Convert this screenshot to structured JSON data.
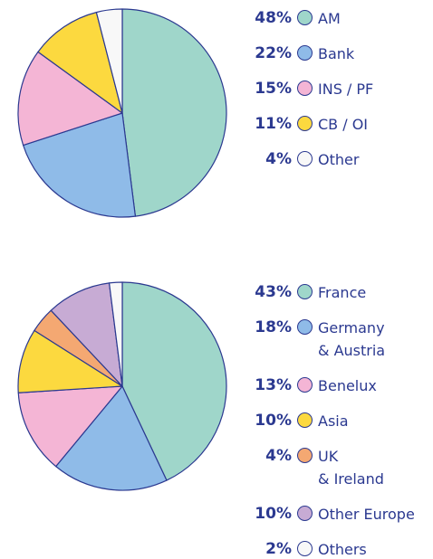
{
  "chart_data": [
    {
      "type": "pie",
      "categories": [
        "AM",
        "Bank",
        "INS / PF",
        "CB / OI",
        "Other"
      ],
      "values": [
        48,
        22,
        15,
        11,
        4
      ],
      "value_labels": [
        "48%",
        "22%",
        "15%",
        "11%",
        "4%"
      ],
      "colors": [
        "#9fd6ca",
        "#8fbbe8",
        "#f4b5d5",
        "#fcd93f",
        "#f8f8f8"
      ]
    },
    {
      "type": "pie",
      "categories": [
        "France",
        "Germany\n& Austria",
        "Benelux",
        "Asia",
        "UK\n& Ireland",
        "Other Europe",
        "Others"
      ],
      "values": [
        43,
        18,
        13,
        10,
        4,
        10,
        2
      ],
      "value_labels": [
        "43%",
        "18%",
        "13%",
        "10%",
        "4%",
        "10%",
        "2%"
      ],
      "colors": [
        "#9fd6ca",
        "#8fbbe8",
        "#f4b5d5",
        "#fcd93f",
        "#f4a872",
        "#c7abd4",
        "#f8f8f8"
      ]
    }
  ]
}
